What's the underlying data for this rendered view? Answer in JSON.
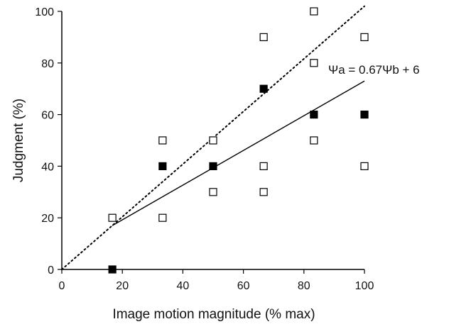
{
  "chart_data": {
    "type": "scatter",
    "title": "",
    "xlabel": "Image motion magnitude (% max)",
    "ylabel": "Judgment (%)",
    "xlim": [
      0,
      100
    ],
    "ylim": [
      0,
      100
    ],
    "x_ticks": [
      "0",
      "20",
      "40",
      "60",
      "80",
      "100"
    ],
    "y_ticks": [
      "0",
      "20",
      "40",
      "60",
      "80",
      "100"
    ],
    "grid": false,
    "series": [
      {
        "marker": "filled-square",
        "color": "#000000",
        "points": [
          {
            "x": 16.7,
            "y": 0
          },
          {
            "x": 33.3,
            "y": 40
          },
          {
            "x": 50,
            "y": 40
          },
          {
            "x": 66.7,
            "y": 70
          },
          {
            "x": 83.3,
            "y": 60
          },
          {
            "x": 100,
            "y": 60
          }
        ]
      },
      {
        "marker": "open-square",
        "color": "#000000",
        "points": [
          {
            "x": 16.7,
            "y": 20
          },
          {
            "x": 33.3,
            "y": 50
          },
          {
            "x": 33.3,
            "y": 20
          },
          {
            "x": 50,
            "y": 50
          },
          {
            "x": 50,
            "y": 30
          },
          {
            "x": 66.7,
            "y": 90
          },
          {
            "x": 66.7,
            "y": 40
          },
          {
            "x": 66.7,
            "y": 30
          },
          {
            "x": 83.3,
            "y": 100
          },
          {
            "x": 83.3,
            "y": 80
          },
          {
            "x": 83.3,
            "y": 50
          },
          {
            "x": 100,
            "y": 90
          },
          {
            "x": 100,
            "y": 40
          }
        ]
      }
    ],
    "lines": [
      {
        "style": "solid",
        "from": [
          16.7,
          17
        ],
        "to": [
          100,
          73
        ]
      },
      {
        "style": "dotted",
        "from": [
          0,
          0
        ],
        "to": [
          100,
          102
        ]
      }
    ],
    "annotation": {
      "text": "Ψa = 0.67Ψb + 6",
      "x": 100,
      "y": 80
    }
  }
}
